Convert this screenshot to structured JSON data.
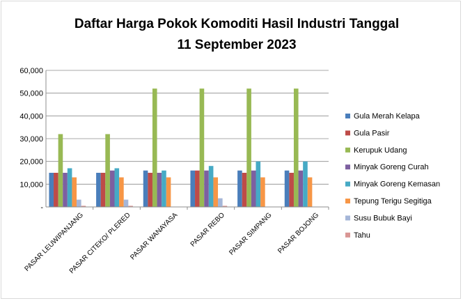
{
  "chart_data": {
    "type": "bar",
    "title_line1": "Daftar Harga Pokok Komoditi Hasil Industri Tanggal",
    "title_line2": "11 September 2023",
    "xlabel": "",
    "ylabel": "",
    "ylim": [
      0,
      60000
    ],
    "y_ticks": [
      "-",
      "10,000",
      "20,000",
      "30,000",
      "40,000",
      "50,000",
      "60,000"
    ],
    "grid": true,
    "legend_position": "right",
    "categories": [
      "PASAR LEUWIPANJANG",
      "PASAR CITEKO/ PLERED",
      "PASAR WANAYASA",
      "PASAR REBO",
      "PASAR SIMPANG",
      "PASAR BOJONG"
    ],
    "series": [
      {
        "name": "Gula Merah Kelapa",
        "color": "#4a7ebb",
        "values": [
          15000,
          15000,
          16000,
          16000,
          16000,
          16000
        ]
      },
      {
        "name": "Gula Pasir",
        "color": "#be4b48",
        "values": [
          15000,
          15000,
          15000,
          16000,
          15000,
          15000
        ]
      },
      {
        "name": "Kerupuk Udang",
        "color": "#98b954",
        "values": [
          32000,
          32000,
          52000,
          52000,
          52000,
          52000
        ]
      },
      {
        "name": "Minyak Goreng Curah",
        "color": "#7d60a0",
        "values": [
          15000,
          16000,
          15000,
          16000,
          16000,
          16000
        ]
      },
      {
        "name": "Minyak Goreng  Kemasan",
        "color": "#46aac5",
        "values": [
          17000,
          17000,
          16000,
          18000,
          20000,
          20000
        ]
      },
      {
        "name": "Tepung Terigu Segitiga",
        "color": "#f79646",
        "values": [
          13000,
          13000,
          13000,
          13000,
          13000,
          13000
        ]
      },
      {
        "name": "Susu Bubuk  Bayi",
        "color": "#a5b6d8",
        "values": [
          3200,
          3200,
          0,
          3800,
          0,
          0
        ]
      },
      {
        "name": "Tahu",
        "color": "#d99694",
        "values": [
          500,
          500,
          0,
          500,
          0,
          0
        ]
      }
    ]
  }
}
